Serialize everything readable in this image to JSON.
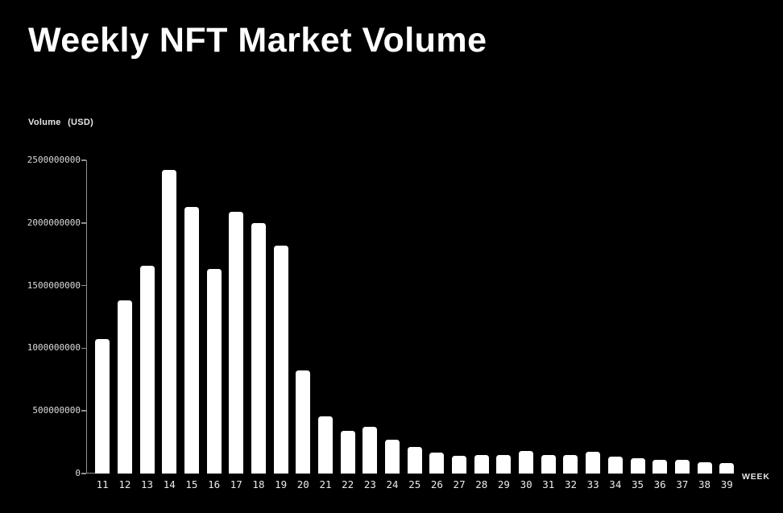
{
  "title": "Weekly NFT Market Volume",
  "y_axis_label": "Volume (USD)",
  "x_axis_label": "WEEK",
  "colors": {
    "background": "#000000",
    "bar": "#ffffff",
    "title_text": "#ffffff",
    "axis": "#8f8f8f",
    "tick_label": "#dcdcdc",
    "x_tick_label": "#ebebeb"
  },
  "chart_data": {
    "type": "bar",
    "title": "Weekly NFT Market Volume",
    "xlabel": "WEEK",
    "ylabel": "Volume (USD)",
    "categories": [
      "11",
      "12",
      "13",
      "14",
      "15",
      "16",
      "17",
      "18",
      "19",
      "20",
      "21",
      "22",
      "23",
      "24",
      "25",
      "26",
      "27",
      "28",
      "29",
      "30",
      "31",
      "32",
      "33",
      "34",
      "35",
      "36",
      "37",
      "38",
      "39"
    ],
    "values": [
      1075000000,
      1380000000,
      1660000000,
      2420000000,
      2130000000,
      1630000000,
      2090000000,
      2000000000,
      1820000000,
      825000000,
      455000000,
      340000000,
      375000000,
      270000000,
      210000000,
      165000000,
      140000000,
      150000000,
      150000000,
      180000000,
      145000000,
      150000000,
      175000000,
      135000000,
      120000000,
      110000000,
      110000000,
      90000000,
      85000000
    ],
    "ylim": [
      0,
      2500000000
    ],
    "yticks": [
      0,
      500000000,
      1000000000,
      1500000000,
      2000000000,
      2500000000
    ],
    "ytick_labels": [
      "0",
      "500000000",
      "1000000000",
      "1500000000",
      "2000000000",
      "2500000000"
    ],
    "grid": false,
    "legend": false
  }
}
